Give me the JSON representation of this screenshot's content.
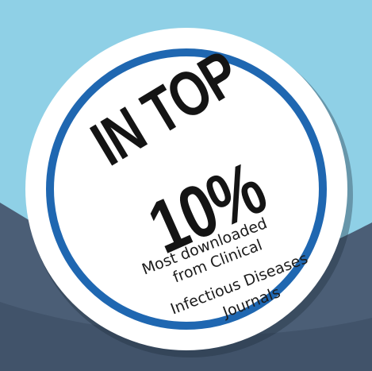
{
  "badge": {
    "headline_line1": "IN TOP",
    "headline_line2": "10%",
    "caption_lines": [
      "Most downloaded",
      "from Clinical",
      "Infectious Diseases",
      "Journals"
    ]
  },
  "colors": {
    "sky": "#8fd0e6",
    "slate": "#4b5e76",
    "slate_dark": "#3a4b61",
    "badge_fill": "#ffffff",
    "ring": "#1f67b1",
    "text": "#141414"
  }
}
